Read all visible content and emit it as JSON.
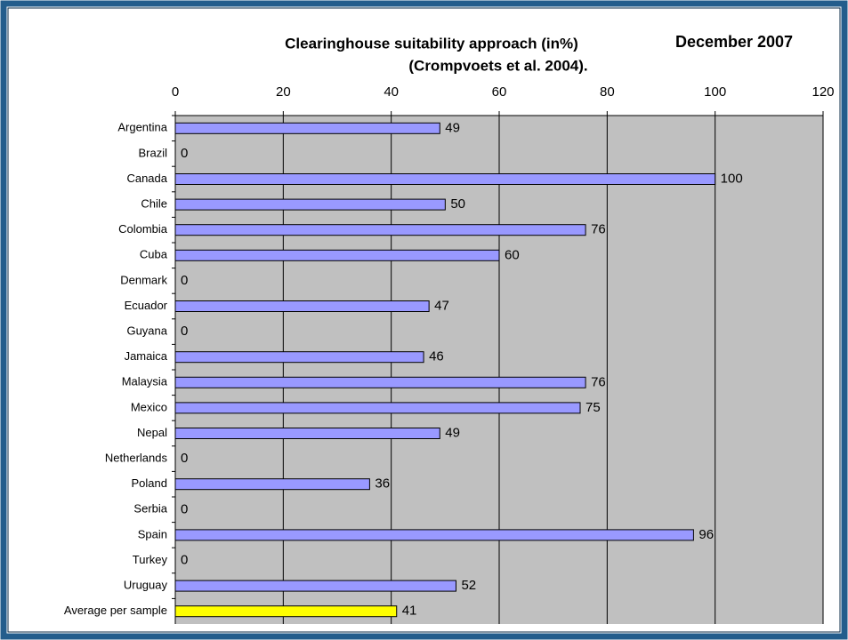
{
  "chart_data": {
    "type": "hbar",
    "title": "Clearinghouse suitability approach (in%)",
    "subtitle": "(Crompvoets et al. 2004).",
    "annotation": "December 2007",
    "categories": [
      "Argentina",
      "Brazil",
      "Canada",
      "Chile",
      "Colombia",
      "Cuba",
      "Denmark",
      "Ecuador",
      "Guyana",
      "Jamaica",
      "Malaysia",
      "Mexico",
      "Nepal",
      "Netherlands",
      "Poland",
      "Serbia",
      "Spain",
      "Turkey",
      "Uruguay",
      "Average per sample"
    ],
    "values": [
      49,
      0,
      100,
      50,
      76,
      60,
      0,
      47,
      0,
      46,
      76,
      75,
      49,
      0,
      36,
      0,
      96,
      0,
      52,
      41
    ],
    "colors": [
      "#9999ff",
      "#9999ff",
      "#9999ff",
      "#9999ff",
      "#9999ff",
      "#9999ff",
      "#9999ff",
      "#9999ff",
      "#9999ff",
      "#9999ff",
      "#9999ff",
      "#9999ff",
      "#9999ff",
      "#9999ff",
      "#9999ff",
      "#9999ff",
      "#9999ff",
      "#9999ff",
      "#9999ff",
      "#ffff00"
    ],
    "xlim": [
      0,
      120
    ],
    "xticks": [
      0,
      20,
      40,
      60,
      80,
      100,
      120
    ],
    "grid": true
  }
}
